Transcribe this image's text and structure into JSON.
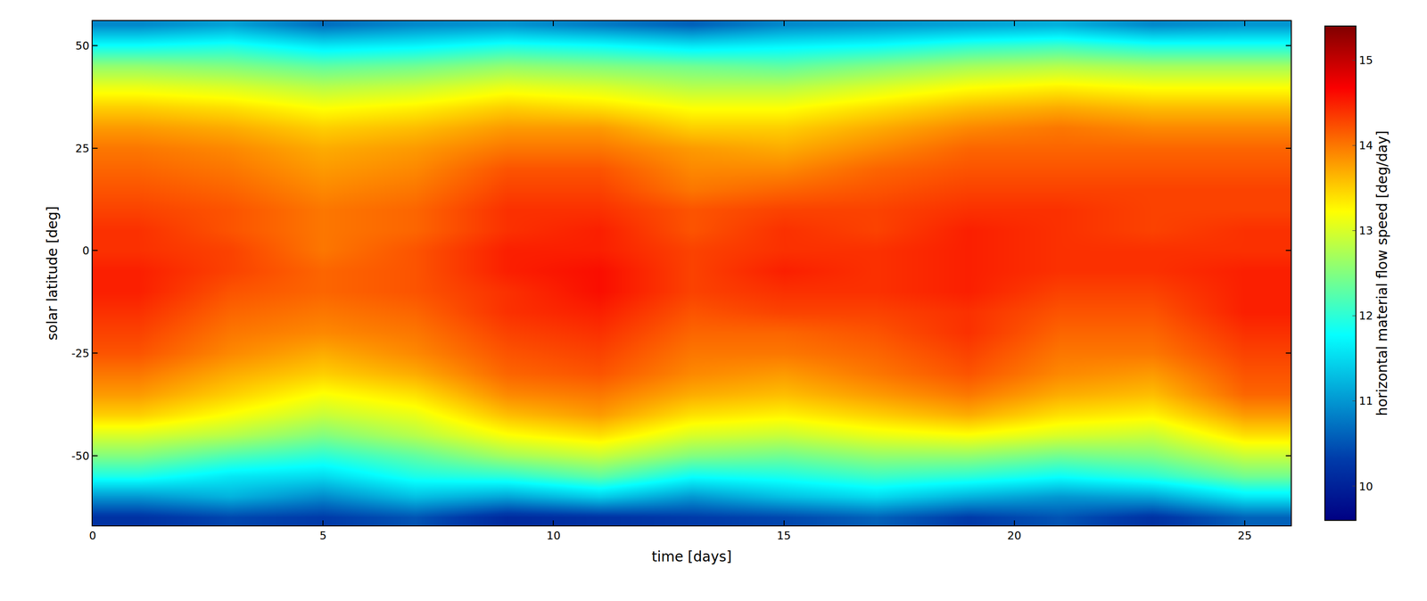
{
  "chart_data": {
    "type": "heatmap",
    "x_label": "time [days]",
    "y_label": "solar latitude [deg]",
    "colorbar_title": "horizontal material flow speed [deg/day]",
    "color": "Jet",
    "x": [
      1,
      3,
      5,
      7,
      9,
      11,
      13,
      15,
      17,
      19,
      21,
      23,
      25
    ],
    "y": [
      -65,
      -60,
      -55,
      -50,
      -45,
      -40,
      -35,
      -30,
      -25,
      -20,
      -15,
      -10,
      -5,
      0,
      5,
      10,
      15,
      20,
      25,
      30,
      35,
      40,
      45,
      50,
      55
    ],
    "z": [
      [
        10.2,
        10.4,
        10.3,
        10.5,
        10.1,
        10.2,
        10.3,
        10.4,
        10.6,
        10.3,
        10.5,
        10.2,
        10.6
      ],
      [
        11.0,
        11.2,
        10.9,
        11.3,
        11.1,
        11.4,
        11.0,
        11.3,
        11.5,
        11.2,
        11.0,
        11.1,
        11.6
      ],
      [
        11.9,
        11.6,
        11.5,
        11.9,
        12.0,
        12.3,
        11.8,
        11.9,
        12.1,
        12.0,
        11.8,
        12.0,
        12.4
      ],
      [
        12.5,
        12.2,
        12.0,
        12.3,
        12.7,
        12.9,
        12.5,
        12.4,
        12.6,
        12.6,
        12.4,
        12.5,
        12.9
      ],
      [
        13.0,
        12.8,
        12.5,
        12.8,
        13.2,
        13.4,
        13.0,
        12.9,
        13.1,
        13.2,
        13.0,
        12.9,
        13.4
      ],
      [
        13.5,
        13.2,
        12.9,
        13.1,
        13.6,
        13.8,
        13.4,
        13.3,
        13.5,
        13.7,
        13.4,
        13.3,
        13.8
      ],
      [
        13.8,
        13.5,
        13.2,
        13.4,
        13.9,
        14.0,
        13.7,
        13.6,
        13.8,
        14.0,
        13.7,
        13.6,
        14.1
      ],
      [
        14.0,
        13.7,
        13.5,
        13.7,
        14.1,
        14.2,
        13.9,
        13.8,
        14.0,
        14.2,
        13.9,
        13.8,
        14.2
      ],
      [
        14.2,
        13.9,
        13.7,
        13.9,
        14.2,
        14.3,
        14.0,
        14.0,
        14.1,
        14.3,
        14.0,
        14.0,
        14.3
      ],
      [
        14.3,
        14.0,
        13.9,
        14.0,
        14.3,
        14.4,
        14.1,
        14.1,
        14.2,
        14.4,
        14.1,
        14.1,
        14.4
      ],
      [
        14.4,
        14.1,
        14.0,
        14.1,
        14.4,
        14.5,
        14.2,
        14.3,
        14.3,
        14.4,
        14.2,
        14.2,
        14.5
      ],
      [
        14.5,
        14.2,
        14.1,
        14.2,
        14.4,
        14.6,
        14.3,
        14.4,
        14.4,
        14.5,
        14.3,
        14.3,
        14.5
      ],
      [
        14.5,
        14.3,
        14.1,
        14.2,
        14.5,
        14.6,
        14.3,
        14.5,
        14.4,
        14.5,
        14.4,
        14.4,
        14.5
      ],
      [
        14.4,
        14.3,
        14.0,
        14.2,
        14.5,
        14.5,
        14.3,
        14.4,
        14.4,
        14.5,
        14.4,
        14.4,
        14.4
      ],
      [
        14.4,
        14.2,
        14.0,
        14.1,
        14.4,
        14.5,
        14.2,
        14.4,
        14.3,
        14.5,
        14.4,
        14.3,
        14.4
      ],
      [
        14.3,
        14.2,
        14.0,
        14.1,
        14.4,
        14.4,
        14.2,
        14.3,
        14.3,
        14.4,
        14.4,
        14.3,
        14.3
      ],
      [
        14.2,
        14.1,
        13.9,
        14.0,
        14.3,
        14.3,
        14.0,
        14.1,
        14.2,
        14.3,
        14.3,
        14.3,
        14.3
      ],
      [
        14.1,
        14.0,
        13.8,
        13.9,
        14.2,
        14.2,
        13.9,
        13.9,
        14.1,
        14.2,
        14.2,
        14.2,
        14.2
      ],
      [
        14.0,
        13.9,
        13.7,
        13.8,
        14.0,
        14.0,
        13.8,
        13.7,
        13.9,
        14.1,
        14.1,
        14.1,
        14.1
      ],
      [
        13.8,
        13.7,
        13.5,
        13.6,
        13.8,
        13.8,
        13.5,
        13.5,
        13.7,
        13.9,
        14.0,
        13.9,
        13.9
      ],
      [
        13.5,
        13.4,
        13.2,
        13.3,
        13.5,
        13.4,
        13.2,
        13.2,
        13.4,
        13.6,
        13.7,
        13.6,
        13.6
      ],
      [
        13.1,
        13.0,
        12.8,
        12.9,
        13.1,
        13.0,
        12.8,
        12.8,
        13.0,
        13.2,
        13.3,
        13.2,
        13.2
      ],
      [
        12.6,
        12.5,
        12.3,
        12.4,
        12.6,
        12.5,
        12.4,
        12.3,
        12.5,
        12.7,
        12.8,
        12.7,
        12.7
      ],
      [
        11.8,
        11.9,
        11.6,
        11.7,
        11.9,
        11.8,
        11.6,
        11.7,
        11.8,
        12.0,
        12.1,
        11.9,
        11.9
      ],
      [
        10.9,
        11.1,
        10.7,
        10.9,
        11.0,
        10.8,
        10.6,
        10.9,
        11.0,
        11.1,
        11.2,
        10.9,
        11.0
      ]
    ],
    "xlim": [
      0,
      26
    ],
    "ylim": [
      -67,
      56
    ],
    "xticks": [
      0,
      5,
      10,
      15,
      20,
      25
    ],
    "yticks": [
      -50,
      -25,
      0,
      25,
      50
    ],
    "zlim": [
      9.6,
      15.4
    ],
    "zticks": [
      10,
      11,
      12,
      13,
      14,
      15
    ],
    "grid": false
  }
}
